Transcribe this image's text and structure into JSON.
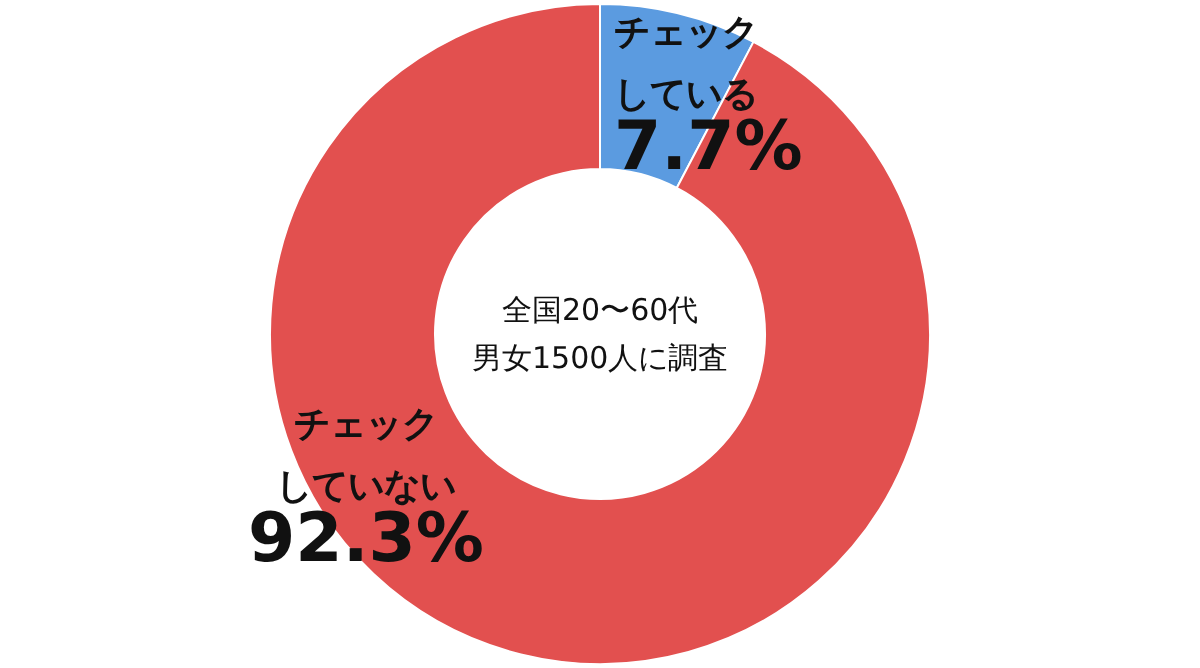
{
  "chart_data": {
    "type": "donut",
    "categories": [
      "チェックしている",
      "チェックしていない"
    ],
    "values": [
      7.7,
      92.3
    ],
    "value_labels": [
      "7.7%",
      "92.3%"
    ],
    "colors": [
      "#5b9be0",
      "#e2504f"
    ],
    "annotations": [
      "全国20〜60代",
      "男女1500人に調査"
    ]
  }
}
